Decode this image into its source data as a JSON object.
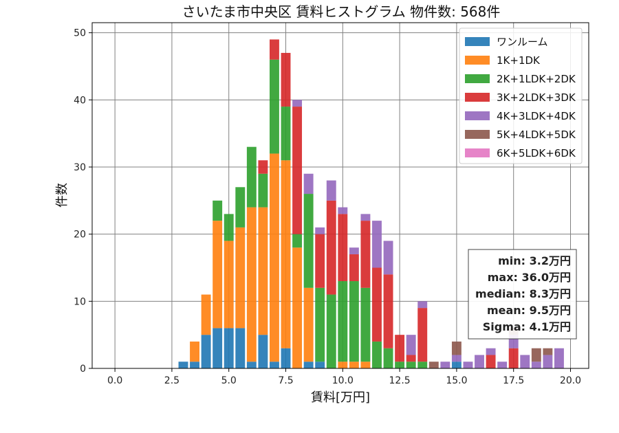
{
  "chart_data": {
    "type": "bar",
    "stacked": true,
    "title": "さいたま市中央区 賃料ヒストグラム 物件数: 568件",
    "xlabel": "賃料[万円]",
    "ylabel": "件数",
    "xlim": [
      -1.0,
      20.8
    ],
    "ylim": [
      0,
      51.5
    ],
    "grid": true,
    "legend_position": "top-right",
    "bin_width": 0.5,
    "xticks": [
      {
        "value": 0.0,
        "label": "0.0"
      },
      {
        "value": 2.5,
        "label": "2.5"
      },
      {
        "value": 5.0,
        "label": "5.0"
      },
      {
        "value": 7.5,
        "label": "7.5"
      },
      {
        "value": 10.0,
        "label": "10.0"
      },
      {
        "value": 12.5,
        "label": "12.5"
      },
      {
        "value": 15.0,
        "label": "15.0"
      },
      {
        "value": 17.5,
        "label": "17.5"
      },
      {
        "value": 20.0,
        "label": "20.0"
      }
    ],
    "yticks": [
      {
        "value": 0,
        "label": "0"
      },
      {
        "value": 10,
        "label": "10"
      },
      {
        "value": 20,
        "label": "20"
      },
      {
        "value": 30,
        "label": "30"
      },
      {
        "value": 40,
        "label": "40"
      },
      {
        "value": 50,
        "label": "50"
      }
    ],
    "x": [
      3.0,
      3.5,
      4.0,
      4.5,
      5.0,
      5.5,
      6.0,
      6.5,
      7.0,
      7.5,
      8.0,
      8.5,
      9.0,
      9.5,
      10.0,
      10.5,
      11.0,
      11.5,
      12.0,
      12.5,
      13.0,
      13.5,
      14.0,
      14.5,
      15.0,
      15.5,
      16.0,
      16.5,
      17.0,
      17.5,
      18.0,
      18.5,
      19.0,
      19.5
    ],
    "series": [
      {
        "name": "ワンルーム",
        "color": "#1f77b4",
        "values": [
          1,
          1,
          5,
          6,
          6,
          6,
          1,
          5,
          1,
          3,
          0,
          1,
          1,
          0,
          0,
          0,
          0,
          0,
          0,
          0,
          0,
          0,
          0,
          0,
          1,
          0,
          0,
          0,
          0,
          0,
          0,
          0,
          0,
          0
        ]
      },
      {
        "name": "1K+1DK",
        "color": "#ff7f0e",
        "values": [
          0,
          3,
          6,
          16,
          13,
          15,
          23,
          19,
          31,
          28,
          18,
          11,
          0,
          0,
          1,
          1,
          1,
          0,
          0,
          0,
          0,
          0,
          0,
          0,
          0,
          0,
          0,
          0,
          0,
          0,
          0,
          0,
          0,
          0
        ]
      },
      {
        "name": "2K+1LDK+2DK",
        "color": "#2ca02c",
        "values": [
          0,
          0,
          0,
          3,
          4,
          6,
          9,
          5,
          14,
          8,
          2,
          14,
          11,
          11,
          12,
          12,
          11,
          4,
          3,
          1,
          1,
          1,
          0,
          0,
          0,
          0,
          0,
          0,
          0,
          0,
          0,
          0,
          0,
          0
        ]
      },
      {
        "name": "3K+2LDK+3DK",
        "color": "#d62728",
        "values": [
          0,
          0,
          0,
          0,
          0,
          0,
          0,
          2,
          3,
          8,
          19,
          0,
          8,
          14,
          10,
          4,
          10,
          11,
          11,
          4,
          1,
          8,
          0,
          0,
          0,
          0,
          0,
          2,
          0,
          3,
          0,
          0,
          0,
          0
        ]
      },
      {
        "name": "4K+3LDK+4DK",
        "color": "#9467bd",
        "values": [
          0,
          0,
          0,
          0,
          0,
          0,
          0,
          0,
          0,
          0,
          1,
          3,
          1,
          3,
          1,
          1,
          1,
          7,
          5,
          0,
          3,
          1,
          0,
          1,
          1,
          1,
          2,
          1,
          1,
          2,
          2,
          1,
          2,
          3
        ]
      },
      {
        "name": "5K+4LDK+5DK",
        "color": "#8c564b",
        "values": [
          0,
          0,
          0,
          0,
          0,
          0,
          0,
          0,
          0,
          0,
          0,
          0,
          0,
          0,
          0,
          0,
          0,
          0,
          0,
          0,
          0,
          0,
          1,
          0,
          2,
          0,
          0,
          0,
          0,
          1,
          0,
          2,
          1,
          0
        ]
      },
      {
        "name": "6K+5LDK+6DK",
        "color": "#e377c2",
        "values": [
          0,
          0,
          0,
          0,
          0,
          0,
          0,
          0,
          0,
          0,
          0,
          0,
          0,
          0,
          0,
          0,
          0,
          0,
          0,
          0,
          0,
          0,
          0,
          0,
          0,
          0,
          0,
          0,
          0,
          0,
          0,
          0,
          0,
          0
        ]
      }
    ],
    "stats": [
      "min: 3.2万円",
      "max: 36.0万円",
      "median: 8.3万円",
      "mean: 9.5万円",
      "Sigma: 4.1万円"
    ]
  }
}
